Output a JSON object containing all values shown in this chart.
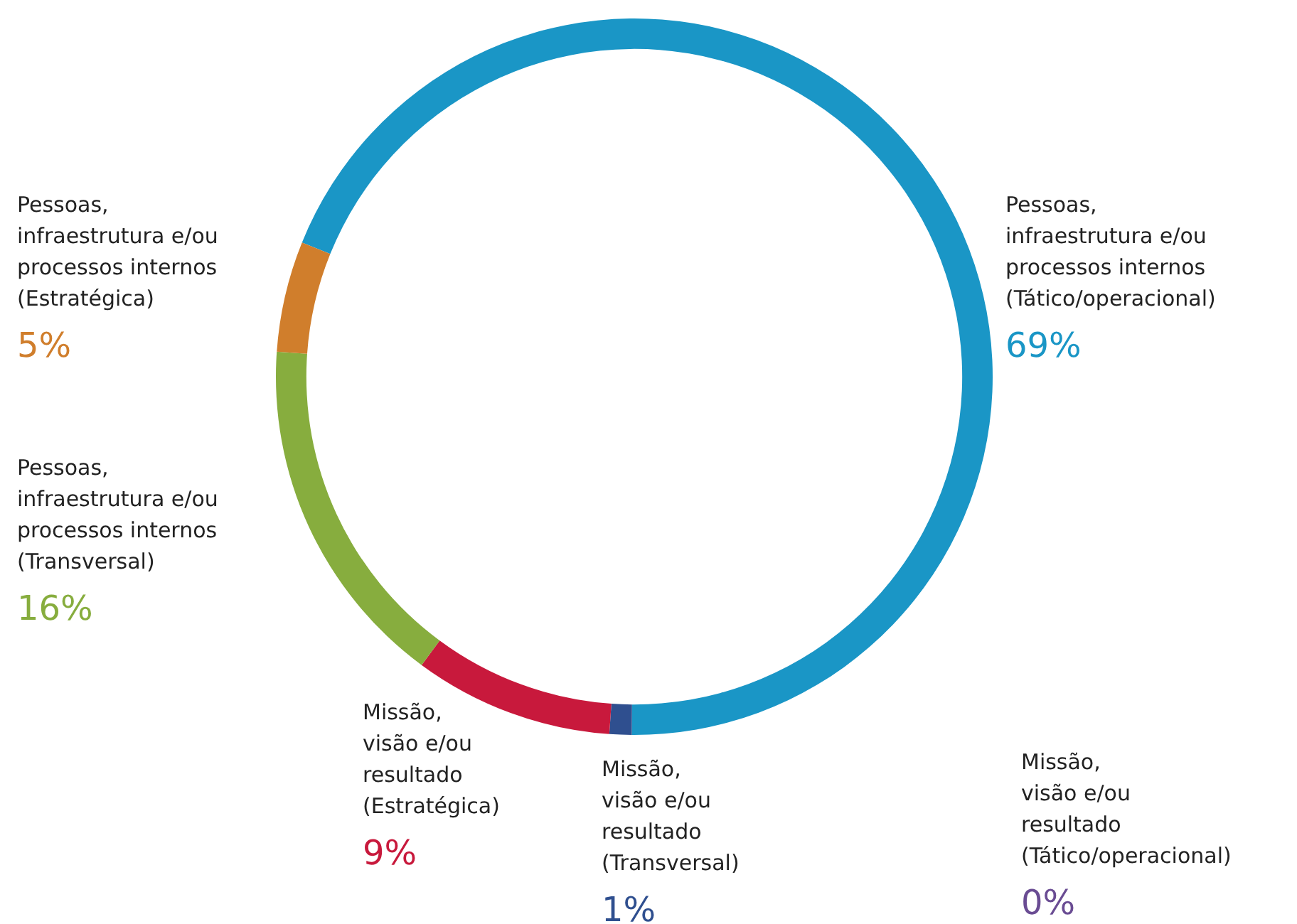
{
  "chart_data": {
    "type": "donut",
    "categories": [
      "Pessoas,\ninfraestrutura e/ou\nprocessos internos\n(Tático/operacional)",
      "Missão,\nvisão e/ou\nresultado\n(Tático/operacional)",
      "Missão,\nvisão e/ou\nresultado\n(Transversal)",
      "Missão,\nvisão e/ou\nresultado\n(Estratégica)",
      "Pessoas,\ninfraestrutura e/ou\nprocessos internos\n(Transversal)",
      "Pessoas,\ninfraestrutura e/ou\nprocessos internos\n(Estratégica)"
    ],
    "values": [
      69,
      0,
      1,
      9,
      16,
      5
    ],
    "value_labels": [
      "69%",
      "0%",
      "1%",
      "9%",
      "16%",
      "5%"
    ],
    "colors": [
      "#1a96c6",
      "#6a4c93",
      "#2f4f8f",
      "#c8193c",
      "#87ad3e",
      "#d07e2c"
    ],
    "legend": false
  }
}
